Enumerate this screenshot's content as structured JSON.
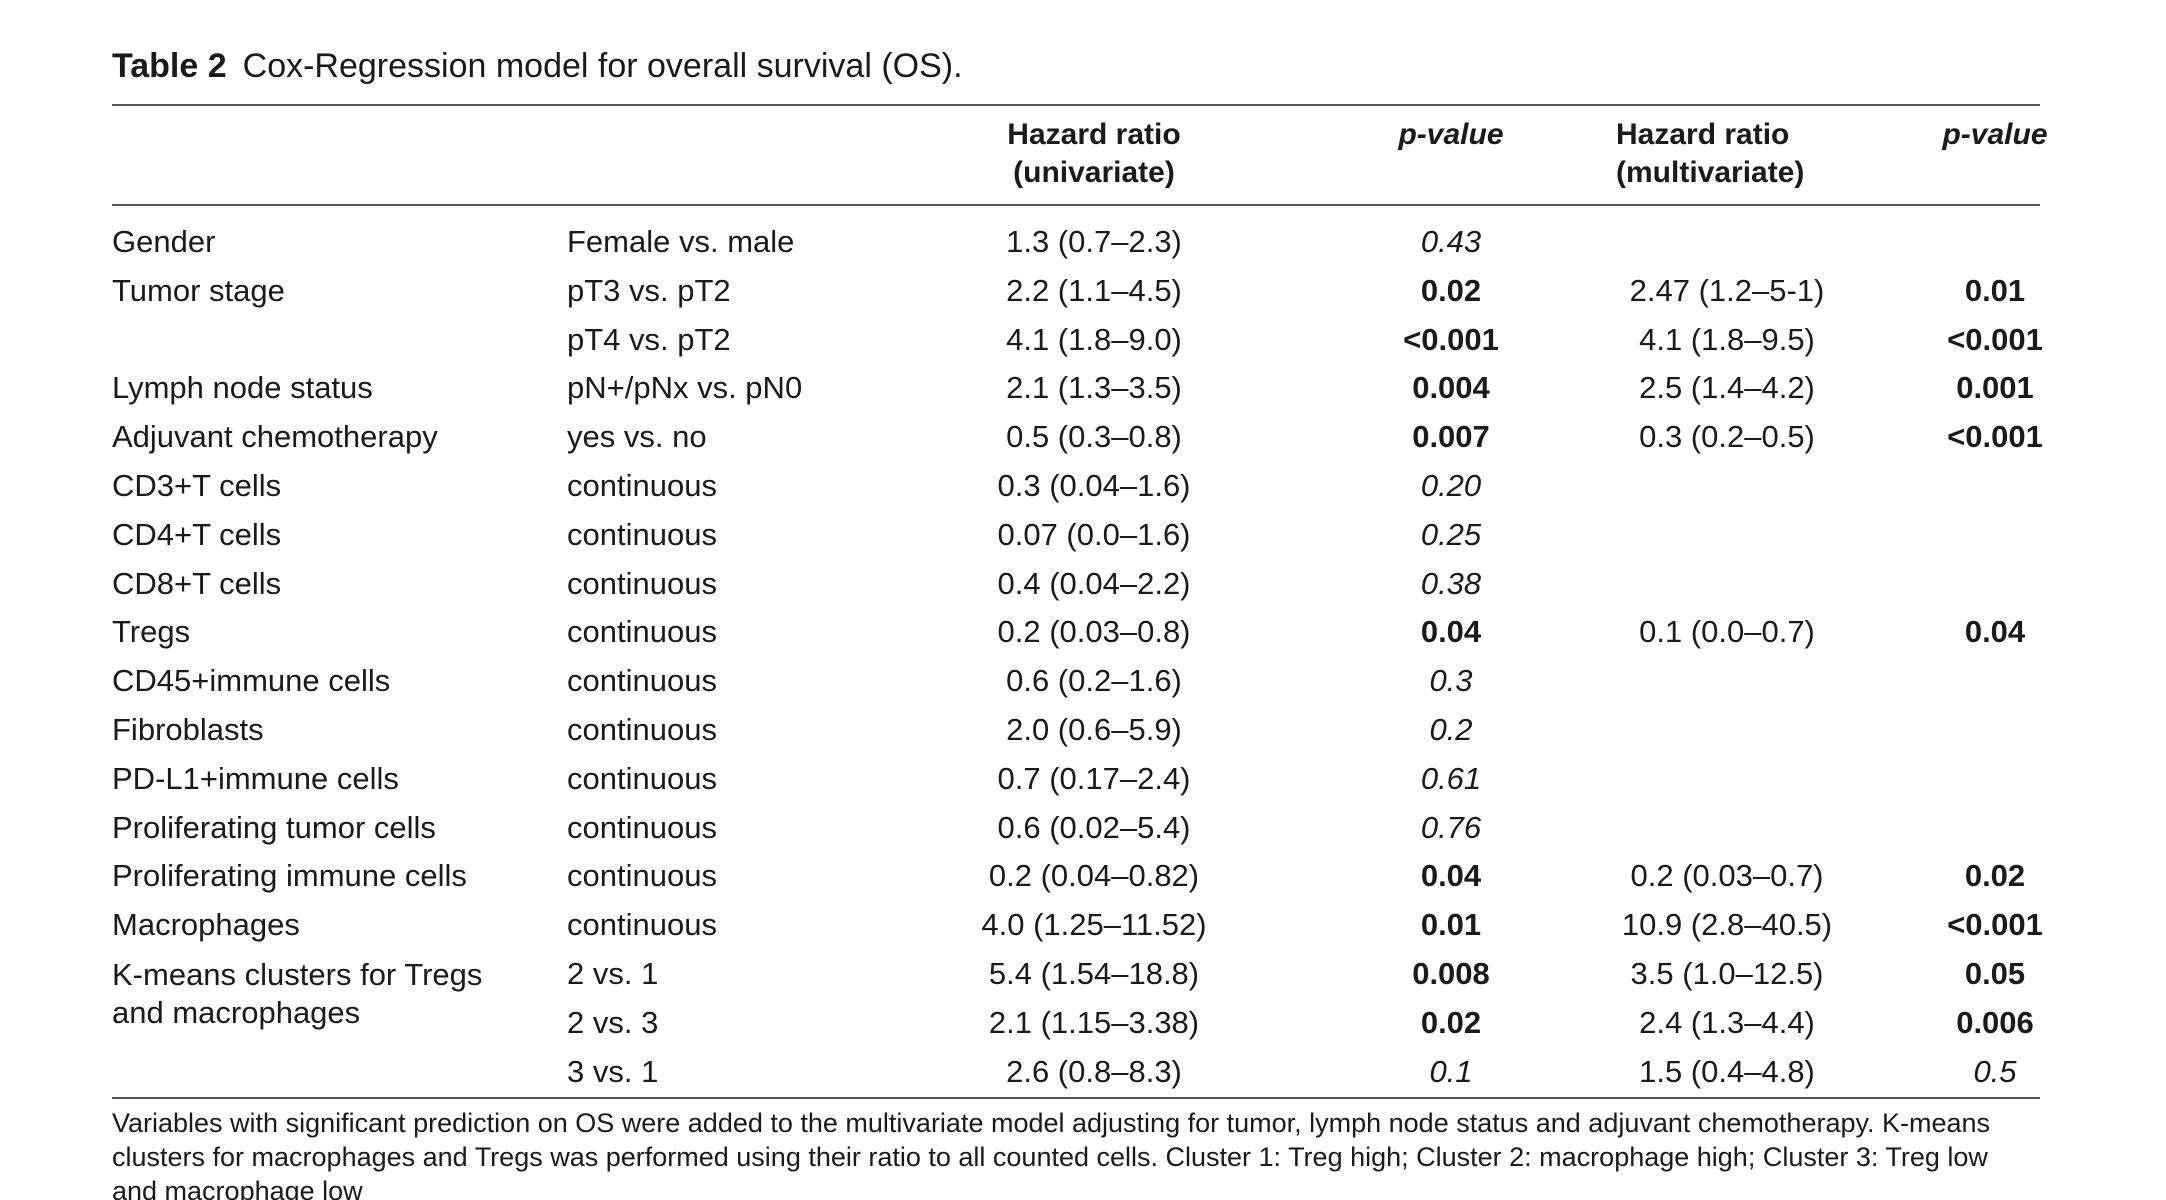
{
  "caption": {
    "label": "Table 2",
    "title": "Cox-Regression model for overall survival (OS)."
  },
  "headers": {
    "hr_univariate": "Hazard ratio (univariate)",
    "p_univariate": "p-value",
    "hr_multivariate_line1": "Hazard ratio",
    "hr_multivariate_line2": "(multivariate)",
    "p_multivariate": "p-value"
  },
  "rows": [
    {
      "variable": "Gender",
      "comparison": "Female vs. male",
      "hr_uni": "1.3 (0.7–2.3)",
      "p_uni": "0.43",
      "hr_multi": "",
      "p_multi": ""
    },
    {
      "variable": "Tumor stage",
      "comparison": "pT3 vs. pT2",
      "hr_uni": "2.2 (1.1–4.5)",
      "p_uni": "0.02",
      "hr_multi": "2.47 (1.2–5-1)",
      "p_multi": "0.01"
    },
    {
      "variable": "",
      "comparison": "pT4 vs. pT2",
      "hr_uni": "4.1 (1.8–9.0)",
      "p_uni": "<0.001",
      "hr_multi": "4.1 (1.8–9.5)",
      "p_multi": "<0.001"
    },
    {
      "variable": "Lymph node status",
      "comparison": "pN+/pNx vs. pN0",
      "hr_uni": "2.1 (1.3–3.5)",
      "p_uni": "0.004",
      "hr_multi": "2.5 (1.4–4.2)",
      "p_multi": "0.001"
    },
    {
      "variable": "Adjuvant chemotherapy",
      "comparison": "yes vs. no",
      "hr_uni": "0.5 (0.3–0.8)",
      "p_uni": "0.007",
      "hr_multi": "0.3 (0.2–0.5)",
      "p_multi": "<0.001"
    },
    {
      "variable": "CD3+T cells",
      "comparison": "continuous",
      "hr_uni": "0.3 (0.04–1.6)",
      "p_uni": "0.20",
      "hr_multi": "",
      "p_multi": ""
    },
    {
      "variable": "CD4+T cells",
      "comparison": "continuous",
      "hr_uni": "0.07 (0.0–1.6)",
      "p_uni": "0.25",
      "hr_multi": "",
      "p_multi": ""
    },
    {
      "variable": "CD8+T cells",
      "comparison": "continuous",
      "hr_uni": "0.4 (0.04–2.2)",
      "p_uni": "0.38",
      "hr_multi": "",
      "p_multi": ""
    },
    {
      "variable": "Tregs",
      "comparison": "continuous",
      "hr_uni": "0.2 (0.03–0.8)",
      "p_uni": "0.04",
      "hr_multi": "0.1 (0.0–0.7)",
      "p_multi": "0.04"
    },
    {
      "variable": "CD45+immune cells",
      "comparison": "continuous",
      "hr_uni": "0.6 (0.2–1.6)",
      "p_uni": "0.3",
      "hr_multi": "",
      "p_multi": ""
    },
    {
      "variable": "Fibroblasts",
      "comparison": "continuous",
      "hr_uni": "2.0 (0.6–5.9)",
      "p_uni": "0.2",
      "hr_multi": "",
      "p_multi": ""
    },
    {
      "variable": "PD-L1+immune cells",
      "comparison": "continuous",
      "hr_uni": "0.7 (0.17–2.4)",
      "p_uni": "0.61",
      "hr_multi": "",
      "p_multi": ""
    },
    {
      "variable": "Proliferating tumor cells",
      "comparison": "continuous",
      "hr_uni": "0.6 (0.02–5.4)",
      "p_uni": "0.76",
      "hr_multi": "",
      "p_multi": ""
    },
    {
      "variable": "Proliferating immune cells",
      "comparison": "continuous",
      "hr_uni": "0.2 (0.04–0.82)",
      "p_uni": "0.04",
      "hr_multi": "0.2 (0.03–0.7)",
      "p_multi": "0.02"
    },
    {
      "variable": "Macrophages",
      "comparison": "continuous",
      "hr_uni": "4.0 (1.25–11.52)",
      "p_uni": "0.01",
      "hr_multi": "10.9 (2.8–40.5)",
      "p_multi": "<0.001"
    },
    {
      "variable": "K-means clusters for Tregs and macrophages",
      "comparison": "2 vs. 1",
      "hr_uni": "5.4 (1.54–18.8)",
      "p_uni": "0.008",
      "hr_multi": "3.5 (1.0–12.5)",
      "p_multi": "0.05"
    },
    {
      "variable": "",
      "comparison": "2 vs. 3",
      "hr_uni": "2.1 (1.15–3.38)",
      "p_uni": "0.02",
      "hr_multi": "2.4 (1.3–4.4)",
      "p_multi": "0.006"
    },
    {
      "variable": "",
      "comparison": "3 vs. 1",
      "hr_uni": "2.6 (0.8–8.3)",
      "p_uni": "0.1",
      "hr_multi": "1.5 (0.4–4.8)",
      "p_multi": "0.5"
    }
  ],
  "footnote": "Variables with significant prediction on OS were added to the multivariate model adjusting for tumor, lymph node status and adjuvant chemotherapy. K-means clusters for macrophages and Tregs was performed using their ratio to all counted cells. Cluster 1: Treg high; Cluster 2: macrophage high; Cluster 3: Treg low and macrophage low"
}
